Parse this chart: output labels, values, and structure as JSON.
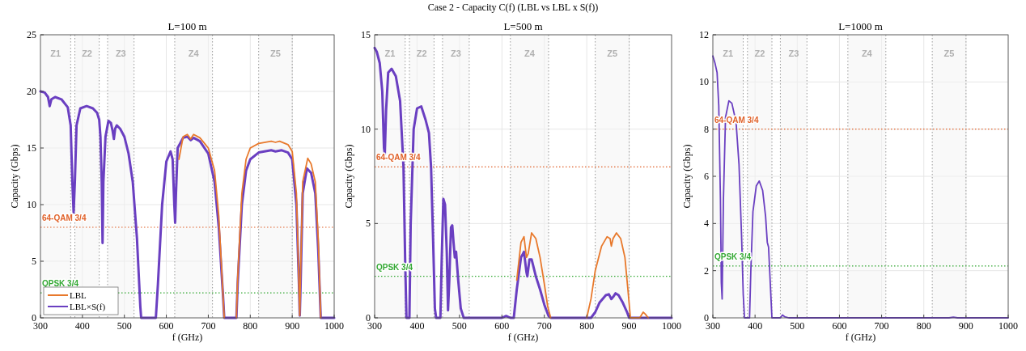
{
  "chart_data": [
    {
      "type": "line",
      "title": "L=100 m",
      "annotations": [
        "Case 2 - Capacity C(f) (LBL vs LBL x S(f))"
      ],
      "xlabel": "f (GHz)",
      "ylabel": "Capacity (Gbps)",
      "xlim": [
        300,
        1000
      ],
      "xticks": [
        300,
        400,
        500,
        600,
        700,
        800,
        900,
        1000
      ],
      "ylim": [
        0,
        25
      ],
      "yticks": [
        0,
        5,
        10,
        15,
        20,
        25
      ],
      "grid": true,
      "legend": "bottom left",
      "series": [
        {
          "name": "LBL",
          "color": "#e8792c",
          "x": [
            630,
            640,
            650,
            658,
            665,
            680,
            700,
            715,
            725,
            735,
            738,
            752,
            767,
            770,
            780,
            790,
            800,
            820,
            850,
            860,
            870,
            890,
            900,
            910,
            916,
            918,
            920,
            925,
            937,
            945,
            955,
            962,
            968
          ],
          "values": [
            14,
            16.0,
            16.2,
            15.8,
            16.2,
            15.9,
            15,
            13,
            9,
            2,
            0,
            null,
            0,
            3.5,
            11,
            14,
            15,
            15.4,
            15.6,
            15.5,
            15.6,
            15.3,
            14.7,
            11,
            3,
            0.2,
            4,
            12,
            14.1,
            13.6,
            12,
            7,
            0
          ]
        },
        {
          "name": "LBL×S(f)",
          "color": "#6a3fc1",
          "x": [
            300,
            310,
            318,
            322,
            326,
            335,
            350,
            365,
            372,
            376,
            379,
            382,
            386,
            395,
            410,
            425,
            435,
            440,
            443,
            446,
            448,
            450,
            455,
            462,
            468,
            472,
            475,
            478,
            482,
            490,
            500,
            510,
            520,
            530,
            538,
            540,
            575,
            580,
            590,
            600,
            610,
            615,
            619,
            621,
            623,
            627,
            640,
            650,
            658,
            665,
            680,
            700,
            715,
            725,
            735,
            738,
            767,
            770,
            780,
            790,
            800,
            820,
            850,
            860,
            875,
            890,
            900,
            910,
            916,
            918,
            920,
            925,
            935,
            945,
            955,
            962,
            968,
            1000
          ],
          "values": [
            20,
            19.9,
            19.5,
            18.7,
            19.3,
            19.5,
            19.3,
            18.6,
            17,
            12,
            9.3,
            12,
            17,
            18.5,
            18.7,
            18.5,
            18.1,
            17.5,
            16,
            12,
            6.6,
            12,
            16,
            17.4,
            17.2,
            16.5,
            15.8,
            16.7,
            17.0,
            16.7,
            16,
            14.5,
            12,
            7,
            1,
            0,
            0,
            3,
            10,
            13.8,
            14.7,
            14,
            10,
            8.4,
            11,
            15,
            15.9,
            16.0,
            15.7,
            15.9,
            15.6,
            14.5,
            12,
            8,
            2,
            0,
            0,
            3,
            10,
            13,
            14,
            14.6,
            14.8,
            14.7,
            14.8,
            14.6,
            14,
            10,
            3,
            0.2,
            3,
            11,
            13.2,
            12.8,
            11,
            6,
            0,
            0
          ]
        }
      ],
      "ref_lines": [
        {
          "axis": "y",
          "value": 8,
          "label": "64-QAM 3/4",
          "color": "#e0622a",
          "line_style": "dotted"
        },
        {
          "axis": "y",
          "value": 2.2,
          "label": "QPSK 3/4",
          "color": "#33a833",
          "line_style": "dotted"
        }
      ],
      "bands": [
        {
          "axis": "x",
          "from": 300,
          "to": 372,
          "label": "Z1",
          "color": "#f4f4f4"
        },
        {
          "axis": "x",
          "from": 382,
          "to": 440,
          "label": "Z2",
          "color": "#f4f4f4"
        },
        {
          "axis": "x",
          "from": 460,
          "to": 523,
          "label": "Z3",
          "color": "#f4f4f4"
        },
        {
          "axis": "x",
          "from": 620,
          "to": 710,
          "label": "Z4",
          "color": "#f4f4f4"
        },
        {
          "axis": "x",
          "from": 820,
          "to": 900,
          "label": "Z5",
          "color": "#f4f4f4"
        }
      ]
    },
    {
      "type": "line",
      "title": "L=500 m",
      "xlabel": "f (GHz)",
      "ylabel": "Capacity (Gbps)",
      "xlim": [
        300,
        1000
      ],
      "xticks": [
        300,
        400,
        500,
        600,
        700,
        800,
        900,
        1000
      ],
      "ylim": [
        0,
        15
      ],
      "yticks": [
        0,
        5,
        10,
        15
      ],
      "grid": true,
      "series": [
        {
          "color": "#e8792c",
          "x": [
            635,
            645,
            652,
            658,
            662,
            670,
            680,
            690,
            700,
            708,
            715,
            760,
            800,
            810,
            820,
            835,
            848,
            855,
            858,
            862,
            870,
            880,
            890,
            897,
            903,
            925,
            933,
            938,
            945
          ],
          "values": [
            2,
            4,
            4.3,
            3.2,
            3.4,
            4.5,
            4.2,
            3.2,
            1.8,
            0.6,
            0,
            null,
            0,
            1,
            2.5,
            3.8,
            4.3,
            4.2,
            3.8,
            4.2,
            4.5,
            4.2,
            3.2,
            1.5,
            0,
            0,
            0.3,
            0.2,
            0
          ]
        },
        {
          "color": "#6a3fc1",
          "x": [
            300,
            305,
            312,
            318,
            322,
            324,
            327,
            332,
            340,
            350,
            360,
            368,
            372,
            375,
            382,
            385,
            392,
            400,
            410,
            420,
            428,
            433,
            438,
            442,
            445,
            455,
            458,
            462,
            466,
            470,
            473,
            476,
            480,
            483,
            486,
            489,
            492,
            497,
            503,
            510,
            600,
            610,
            620,
            628,
            635,
            645,
            652,
            658,
            660,
            665,
            670,
            680,
            690,
            700,
            710,
            715,
            810,
            820,
            830,
            845,
            852,
            858,
            862,
            868,
            875,
            885,
            895,
            900,
            1000
          ],
          "values": [
            14.3,
            14.1,
            13.5,
            12,
            9,
            8.7,
            11,
            13,
            13.2,
            12.8,
            11.5,
            8,
            3,
            0,
            0,
            5,
            10,
            11.1,
            11.2,
            10.5,
            9.8,
            8,
            4,
            0.5,
            0,
            0,
            3,
            6.3,
            6,
            3.5,
            0.4,
            2,
            4.8,
            4.9,
            4,
            3.2,
            3.5,
            2,
            0.5,
            0,
            0,
            0.1,
            0,
            0,
            1.5,
            3.2,
            3.5,
            2.4,
            2.2,
            3.1,
            3.1,
            2.2,
            1.5,
            0.7,
            0.1,
            0,
            0,
            0.3,
            0.8,
            1.2,
            1.25,
            1.0,
            1.1,
            1.3,
            1.2,
            0.8,
            0.3,
            0,
            0
          ]
        }
      ],
      "ref_lines": [
        {
          "axis": "y",
          "value": 8,
          "label": "64-QAM 3/4",
          "color": "#e0622a",
          "line_style": "dotted"
        },
        {
          "axis": "y",
          "value": 2.2,
          "label": "QPSK 3/4",
          "color": "#33a833",
          "line_style": "dotted"
        }
      ],
      "bands": [
        {
          "axis": "x",
          "from": 300,
          "to": 372,
          "label": "Z1",
          "color": "#f4f4f4"
        },
        {
          "axis": "x",
          "from": 382,
          "to": 440,
          "label": "Z2",
          "color": "#f4f4f4"
        },
        {
          "axis": "x",
          "from": 460,
          "to": 523,
          "label": "Z3",
          "color": "#f4f4f4"
        },
        {
          "axis": "x",
          "from": 620,
          "to": 710,
          "label": "Z4",
          "color": "#f4f4f4"
        },
        {
          "axis": "x",
          "from": 820,
          "to": 900,
          "label": "Z5",
          "color": "#f4f4f4"
        }
      ]
    },
    {
      "type": "line",
      "title": "L=1000 m",
      "xlabel": "f (GHz)",
      "ylabel": "Capacity (Gbps)",
      "xlim": [
        300,
        1000
      ],
      "xticks": [
        300,
        400,
        500,
        600,
        700,
        800,
        900,
        1000
      ],
      "ylim": [
        0,
        12
      ],
      "yticks": [
        0,
        2,
        4,
        6,
        8,
        10,
        12
      ],
      "grid": true,
      "series": [
        {
          "color": "#6a3fc1",
          "x": [
            300,
            305,
            310,
            314,
            318,
            320,
            322,
            325,
            330,
            338,
            345,
            355,
            362,
            368,
            372,
            375,
            387,
            390,
            395,
            403,
            410,
            418,
            425,
            429,
            432,
            436,
            440,
            460,
            465,
            470,
            480,
            860,
            870,
            880,
            1000
          ],
          "values": [
            11.1,
            10.8,
            10.4,
            9,
            5,
            1.5,
            0.8,
            5,
            8.5,
            9.2,
            9.1,
            8.3,
            6.5,
            3.5,
            1,
            0,
            0,
            2,
            4.5,
            5.6,
            5.8,
            5.4,
            4.3,
            3.2,
            3,
            1.5,
            0,
            0,
            0.12,
            0.05,
            0,
            0,
            0.03,
            0,
            0
          ]
        }
      ],
      "ref_lines": [
        {
          "axis": "y",
          "value": 8,
          "label": "64-QAM 3/4",
          "color": "#e0622a",
          "line_style": "dotted"
        },
        {
          "axis": "y",
          "value": 2.2,
          "label": "QPSK 3/4",
          "color": "#33a833",
          "line_style": "dotted"
        }
      ],
      "bands": [
        {
          "axis": "x",
          "from": 300,
          "to": 372,
          "label": "Z1",
          "color": "#f4f4f4"
        },
        {
          "axis": "x",
          "from": 382,
          "to": 440,
          "label": "Z2",
          "color": "#f4f4f4"
        },
        {
          "axis": "x",
          "from": 460,
          "to": 523,
          "label": "Z3",
          "color": "#f4f4f4"
        },
        {
          "axis": "x",
          "from": 620,
          "to": 710,
          "label": "Z4",
          "color": "#f4f4f4"
        },
        {
          "axis": "x",
          "from": 820,
          "to": 900,
          "label": "Z5",
          "color": "#f4f4f4"
        }
      ]
    }
  ]
}
